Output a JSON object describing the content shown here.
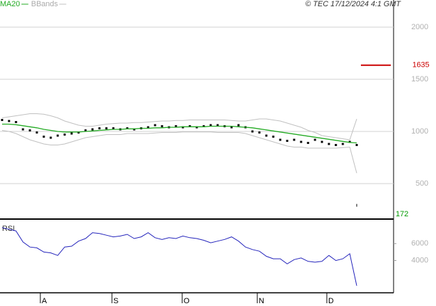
{
  "chart_data": [
    {
      "type": "line",
      "source": "© TEC 17/12/2024 4:1 GMT",
      "x": [
        0,
        1,
        2,
        3,
        4,
        5,
        6,
        7,
        8,
        9,
        10,
        11,
        12,
        13,
        14,
        15,
        16,
        17,
        18,
        19,
        20,
        21,
        22,
        23,
        24,
        25,
        26,
        27,
        28,
        29,
        30,
        31,
        32,
        33,
        34,
        35,
        36,
        37,
        38,
        39,
        40,
        41,
        42,
        43,
        44,
        45,
        46,
        47,
        48,
        49,
        50,
        51
      ],
      "xlim": [
        -0.3,
        56.3
      ],
      "xticks": [
        {
          "value": 5.5,
          "label": "A"
        },
        {
          "value": 15.8,
          "label": "S"
        },
        {
          "value": 25.9,
          "label": "O"
        },
        {
          "value": 36.7,
          "label": "N"
        },
        {
          "value": 46.7,
          "label": "D"
        }
      ],
      "ylim": [
        160,
        2260
      ],
      "yticks": [
        2000,
        1500,
        1000,
        500
      ],
      "grid": true,
      "series": [
        {
          "color": "#000000",
          "style": "dots",
          "values": [
            1110,
            1100,
            1090,
            1020,
            1010,
            990,
            950,
            940,
            960,
            970,
            980,
            990,
            1010,
            1020,
            1030,
            1030,
            1030,
            1020,
            1030,
            1020,
            1030,
            1040,
            1060,
            1050,
            1040,
            1050,
            1040,
            1050,
            1040,
            1050,
            1060,
            1060,
            1050,
            1040,
            1060,
            1040,
            1000,
            990,
            960,
            950,
            920,
            910,
            920,
            900,
            890,
            920,
            900,
            880,
            870,
            880,
            900,
            870
          ]
        },
        {
          "name": "MA20",
          "color": "#22aa22",
          "style": "line",
          "values": [
            1070,
            1070,
            1065,
            1055,
            1045,
            1035,
            1020,
            1010,
            1000,
            995,
            995,
            995,
            1000,
            1005,
            1010,
            1015,
            1020,
            1020,
            1025,
            1025,
            1030,
            1030,
            1035,
            1035,
            1040,
            1040,
            1045,
            1045,
            1045,
            1045,
            1050,
            1050,
            1050,
            1050,
            1045,
            1040,
            1035,
            1025,
            1015,
            1005,
            995,
            985,
            975,
            965,
            955,
            945,
            935,
            925,
            915,
            905,
            895,
            890
          ]
        },
        {
          "name": "BBands",
          "color": "#c0c0c0",
          "style": "line",
          "values": [
            1130,
            1140,
            1150,
            1160,
            1170,
            1170,
            1165,
            1150,
            1130,
            1100,
            1080,
            1060,
            1050,
            1050,
            1060,
            1070,
            1075,
            1080,
            1080,
            1085,
            1085,
            1090,
            1095,
            1100,
            1100,
            1105,
            1105,
            1110,
            1110,
            1110,
            1110,
            1110,
            1110,
            1105,
            1100,
            1100,
            1110,
            1120,
            1120,
            1110,
            1100,
            1080,
            1060,
            1040,
            1010,
            990,
            960,
            950,
            940,
            930,
            920,
            1120
          ]
        },
        {
          "color": "#c0c0c0",
          "style": "line",
          "values": [
            1010,
            1000,
            980,
            950,
            920,
            900,
            880,
            870,
            870,
            880,
            900,
            920,
            940,
            950,
            960,
            970,
            970,
            970,
            980,
            980,
            980,
            980,
            985,
            990,
            990,
            990,
            995,
            995,
            995,
            995,
            995,
            990,
            990,
            990,
            990,
            980,
            960,
            940,
            920,
            900,
            880,
            860,
            850,
            850,
            840,
            840,
            840,
            840,
            840,
            845,
            850,
            600
          ]
        }
      ],
      "price_marker": 1635,
      "price_marker_color": "#cc0000",
      "low_marker": 172,
      "low_marker_color": "#009900"
    },
    {
      "type": "line",
      "title": "RSI",
      "x": [
        0,
        1,
        2,
        3,
        4,
        5,
        6,
        7,
        8,
        9,
        10,
        11,
        12,
        13,
        14,
        15,
        16,
        17,
        18,
        19,
        20,
        21,
        22,
        23,
        24,
        25,
        26,
        27,
        28,
        29,
        30,
        31,
        32,
        33,
        34,
        35,
        36,
        37,
        38,
        39,
        40,
        41,
        42,
        43,
        44,
        45,
        46,
        47,
        48,
        49,
        50,
        51
      ],
      "xlim": [
        -0.3,
        56.3
      ],
      "ylim": [
        167,
        8667
      ],
      "yticks": [
        6000,
        4000
      ],
      "series": [
        {
          "color": "#2222bb",
          "style": "line",
          "values": [
            7900,
            7700,
            7500,
            6200,
            5600,
            5500,
            5000,
            4900,
            4600,
            5600,
            5700,
            6300,
            6600,
            7300,
            7200,
            7000,
            6800,
            6900,
            7100,
            6600,
            6800,
            7300,
            6700,
            6500,
            6700,
            6600,
            6900,
            6700,
            6600,
            6400,
            6100,
            6300,
            6500,
            6800,
            6300,
            5600,
            5300,
            5100,
            4500,
            4200,
            4200,
            3600,
            4100,
            4300,
            3900,
            3800,
            3900,
            4600,
            4000,
            4200,
            4800,
            1000
          ]
        }
      ]
    }
  ]
}
